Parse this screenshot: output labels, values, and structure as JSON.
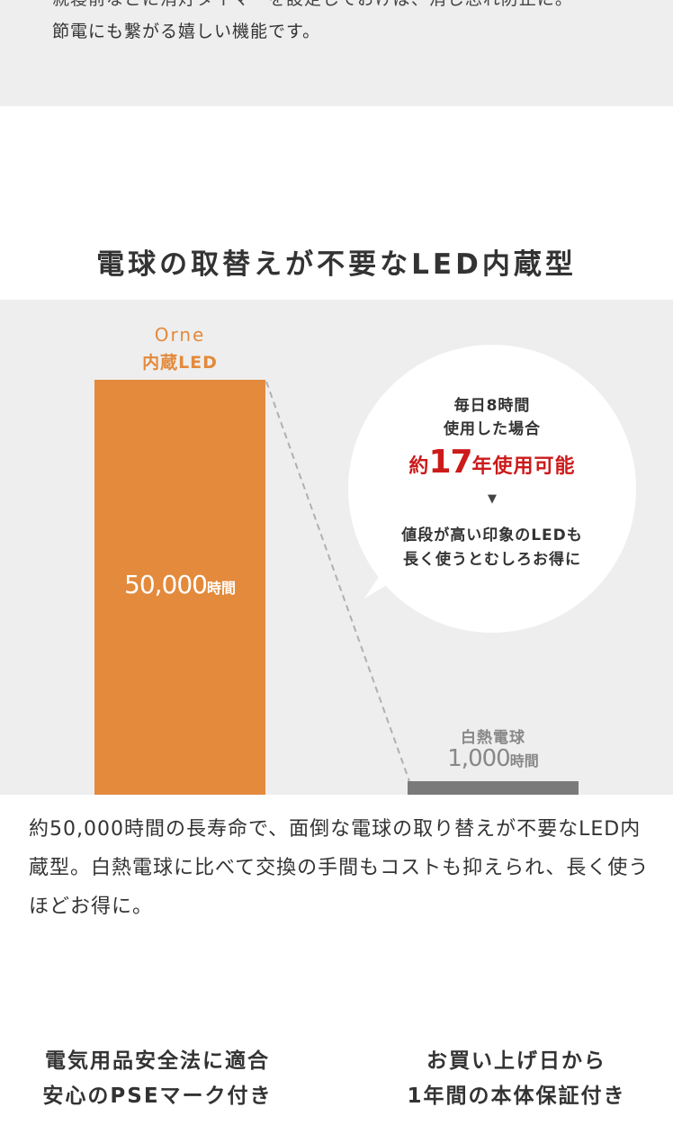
{
  "intro": {
    "line1": "就寝前などに消灯タイマーを設定しておけば、消し忘れ防止に。",
    "line2": "節電にも繋がる嬉しい機能です。"
  },
  "section": {
    "title": "電球の取替えが不要なLED内蔵型"
  },
  "chart_data": {
    "type": "bar",
    "categories": [
      "Orne 内蔵LED",
      "白熱電球"
    ],
    "values": [
      50000,
      1000
    ],
    "unit": "時間",
    "led_label_top": "Orne",
    "led_label_sub": "内蔵LED",
    "led_value_num": "50,000",
    "led_value_unit": "時間",
    "bulb_label": "白熱電球",
    "bulb_value_num": "1,000",
    "bulb_value_unit": "時間",
    "colors": {
      "led": "#e38a3c",
      "bulb": "#7a7a7a"
    }
  },
  "bubble": {
    "line1": "毎日8時間",
    "line2": "使用した場合",
    "highlight_pre": "約",
    "highlight_num": "17",
    "highlight_post": "年使用可能",
    "arrow": "▼",
    "line3": "値段が高い印象のLEDも",
    "line4": "長く使うとむしろお得に",
    "highlight_color": "#cc1a1a"
  },
  "description": "約50,000時間の長寿命で、面倒な電球の取り替えが不要なLED内蔵型。白熱電球に比べて交換の手間もコストも抑えられ、長く使うほどお得に。",
  "features": {
    "left_line1": "電気用品安全法に適合",
    "left_line2": "安心のPSEマーク付き",
    "right_line1": "お買い上げ日から",
    "right_line2": "1年間の本体保証付き"
  }
}
